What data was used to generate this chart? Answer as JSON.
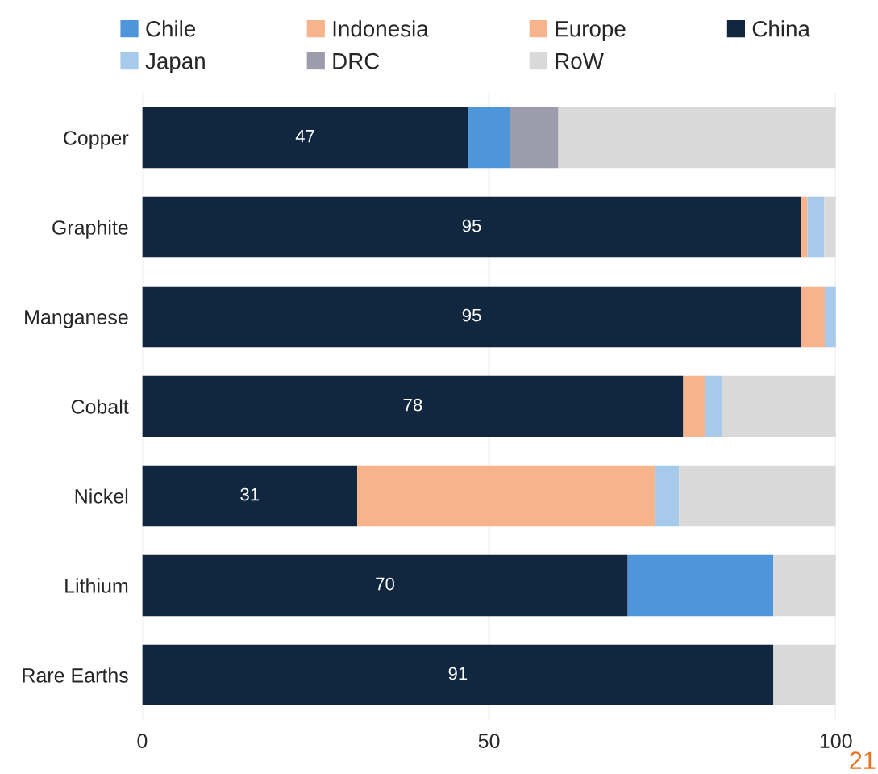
{
  "chart_data": {
    "type": "bar",
    "orientation": "horizontal",
    "stacked": true,
    "categories": [
      "Copper",
      "Graphite",
      "Manganese",
      "Cobalt",
      "Nickel",
      "Lithium",
      "Rare Earths"
    ],
    "series": [
      {
        "name": "China",
        "color": "#10273f",
        "values": [
          47,
          95,
          95,
          78,
          31,
          70,
          91
        ],
        "value_labels": [
          "47",
          "95",
          "95",
          "78",
          "31",
          "70",
          "91"
        ]
      },
      {
        "name": "Chile",
        "color": "#4f95d9",
        "values": [
          6,
          null,
          null,
          null,
          null,
          21,
          null
        ]
      },
      {
        "name": "Indonesia",
        "color": "#f7b38c",
        "values": [
          null,
          0.6,
          null,
          null,
          43,
          null,
          null
        ]
      },
      {
        "name": "Europe",
        "color": "#f7b38c",
        "values": [
          null,
          0.3,
          3.4,
          3.2,
          null,
          null,
          null
        ]
      },
      {
        "name": "DRC",
        "color": "#9c9cad",
        "values": [
          7,
          null,
          null,
          null,
          null,
          null,
          null
        ]
      },
      {
        "name": "Japan",
        "color": "#a7caea",
        "values": [
          null,
          2.4,
          2,
          2.4,
          3.4,
          null,
          null
        ]
      },
      {
        "name": "RoW",
        "color": "#d9d9d9",
        "values": [
          40,
          1.7,
          null,
          16.4,
          22.6,
          9,
          9
        ]
      }
    ],
    "xlim": [
      0,
      100
    ],
    "xticks": [
      0,
      50,
      100
    ],
    "grid": "x",
    "legend": "top",
    "annotations": [
      "21"
    ]
  }
}
